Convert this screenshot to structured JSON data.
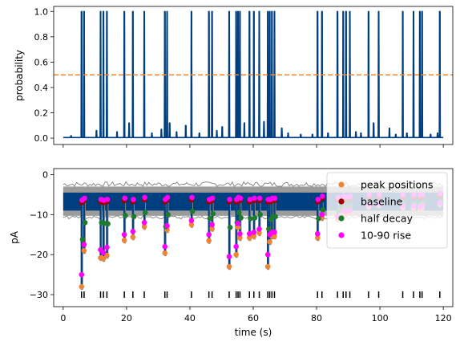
{
  "figure": {
    "top_ylabel": "probability",
    "bottom_ylabel": "pA",
    "xlabel": "time (s)"
  },
  "chart_data": [
    {
      "type": "line",
      "ylabel": "probability",
      "xlim": [
        -3,
        123
      ],
      "ylim": [
        -0.05,
        1.04
      ],
      "x_ticks": [
        0,
        20,
        40,
        60,
        80,
        100,
        120
      ],
      "y_ticks": [
        0.0,
        0.2,
        0.4,
        0.6,
        0.8,
        1.0
      ],
      "y_tick_labels": [
        "0.0",
        "0.2",
        "0.4",
        "0.6",
        "0.8",
        "1.0"
      ],
      "x_tick_labels_visible": false,
      "threshold": {
        "y": 0.5,
        "color": "#ee8533",
        "style": "dashed"
      },
      "series": [
        {
          "color": "#003f7f",
          "baseline": 0.005,
          "spikes": [
            [
              5.8,
              1.0
            ],
            [
              6.6,
              1.0
            ],
            [
              11.8,
              1.0
            ],
            [
              12.7,
              1.0
            ],
            [
              13.8,
              1.0
            ],
            [
              19.3,
              1.0
            ],
            [
              22.0,
              1.0
            ],
            [
              25.6,
              1.0
            ],
            [
              32.1,
              1.0
            ],
            [
              32.8,
              1.0
            ],
            [
              40.5,
              1.0
            ],
            [
              46.0,
              1.0
            ],
            [
              47.0,
              1.0
            ],
            [
              52.4,
              1.0
            ],
            [
              54.6,
              1.0
            ],
            [
              55.2,
              1.0
            ],
            [
              55.8,
              1.0
            ],
            [
              58.8,
              1.0
            ],
            [
              60.2,
              1.0
            ],
            [
              61.9,
              1.0
            ],
            [
              64.6,
              1.0
            ],
            [
              65.2,
              1.0
            ],
            [
              65.9,
              1.0
            ],
            [
              66.7,
              1.0
            ],
            [
              80.3,
              1.0
            ],
            [
              81.7,
              1.0
            ],
            [
              86.6,
              1.0
            ],
            [
              88.4,
              1.0
            ],
            [
              89.3,
              1.0
            ],
            [
              90.5,
              1.0
            ],
            [
              96.4,
              1.0
            ],
            [
              99.6,
              1.0
            ],
            [
              107.2,
              1.0
            ],
            [
              110.6,
              1.0
            ],
            [
              112.6,
              1.0
            ],
            [
              113.3,
              1.0
            ],
            [
              118.9,
              1.0
            ],
            [
              2.5,
              0.02
            ],
            [
              10.5,
              0.06
            ],
            [
              17.0,
              0.05
            ],
            [
              20.8,
              0.12
            ],
            [
              28.0,
              0.04
            ],
            [
              31.0,
              0.07
            ],
            [
              33.6,
              0.12
            ],
            [
              35.8,
              0.05
            ],
            [
              38.7,
              0.1
            ],
            [
              43.0,
              0.04
            ],
            [
              48.5,
              0.06
            ],
            [
              50.2,
              0.09
            ],
            [
              57.2,
              0.12
            ],
            [
              63.4,
              0.13
            ],
            [
              69.0,
              0.08
            ],
            [
              71.0,
              0.04
            ],
            [
              75.0,
              0.03
            ],
            [
              78.7,
              0.03
            ],
            [
              83.6,
              0.04
            ],
            [
              92.4,
              0.05
            ],
            [
              94.0,
              0.04
            ],
            [
              98.0,
              0.12
            ],
            [
              103.0,
              0.08
            ],
            [
              105.0,
              0.03
            ],
            [
              108.5,
              0.04
            ],
            [
              116.0,
              0.03
            ],
            [
              118.2,
              0.04
            ]
          ]
        }
      ]
    },
    {
      "type": "scatter",
      "xlabel": "time (s)",
      "ylabel": "pA",
      "xlim": [
        -3,
        123
      ],
      "ylim": [
        -33,
        1.5
      ],
      "x_ticks": [
        0,
        20,
        40,
        60,
        80,
        100,
        120
      ],
      "x_tick_labels": [
        "0",
        "20",
        "40",
        "60",
        "80",
        "100",
        "120"
      ],
      "y_ticks": [
        0,
        -10,
        -20,
        -30
      ],
      "y_tick_labels": [
        "0",
        "−10",
        "−20",
        "−30"
      ],
      "trace": {
        "raw_color": "#8a8a8a",
        "filtered_color": "#003f7f",
        "band_top": -4.5,
        "band_bottom": -9.0,
        "raw_top": -3.0,
        "raw_bottom": -10.3
      },
      "event_rug": {
        "y": -30.0,
        "color": "#000000"
      },
      "legend": {
        "location": "upper right",
        "entries": [
          "peak positions",
          "baseline",
          "half decay",
          "10-90 rise"
        ]
      },
      "series": [
        {
          "name": "peak positions",
          "color": "#ee8533"
        },
        {
          "name": "baseline",
          "color": "#a00000"
        },
        {
          "name": "half decay",
          "color": "#1e7a2f"
        },
        {
          "name": "10-90 rise",
          "color": "#ff00ff"
        }
      ],
      "events": [
        {
          "t": 5.8,
          "peak": -28.0,
          "half": -16.2,
          "rise": [
            -25.0,
            -7.0
          ]
        },
        {
          "t": 6.6,
          "peak": -19.0,
          "half": -12.0,
          "rise": [
            -17.5,
            -6.5
          ]
        },
        {
          "t": 11.8,
          "peak": -20.8,
          "half": -12.0,
          "rise": [
            -18.8,
            -6.8
          ]
        },
        {
          "t": 12.7,
          "peak": -21.0,
          "half": -12.2,
          "rise": [
            -19.5,
            -7.0
          ]
        },
        {
          "t": 13.8,
          "peak": -20.2,
          "half": -12.3,
          "rise": [
            -18.2,
            -6.8
          ]
        },
        {
          "t": 19.3,
          "peak": -16.4,
          "half": -10.2,
          "rise": [
            -15.0,
            -6.5
          ]
        },
        {
          "t": 22.0,
          "peak": -15.6,
          "half": -10.5,
          "rise": [
            -14.2,
            -6.8
          ]
        },
        {
          "t": 25.6,
          "peak": -13.0,
          "half": -9.5,
          "rise": [
            -12.0,
            -6.3
          ]
        },
        {
          "t": 32.1,
          "peak": -19.6,
          "half": -13.0,
          "rise": [
            -18.0,
            -6.8
          ]
        },
        {
          "t": 32.8,
          "peak": -13.8,
          "half": -10.0,
          "rise": [
            -12.8,
            -6.3
          ]
        },
        {
          "t": 40.5,
          "peak": -12.5,
          "half": -9.2,
          "rise": [
            -11.5,
            -6.3
          ]
        },
        {
          "t": 46.0,
          "peak": -16.5,
          "half": -11.0,
          "rise": [
            -15.0,
            -6.8
          ]
        },
        {
          "t": 47.0,
          "peak": -13.5,
          "half": -9.8,
          "rise": [
            -12.5,
            -6.5
          ]
        },
        {
          "t": 52.4,
          "peak": -23.0,
          "half": -13.2,
          "rise": [
            -20.5,
            -6.8
          ]
        },
        {
          "t": 54.6,
          "peak": -20.0,
          "half": -12.0,
          "rise": [
            -18.0,
            -6.8
          ]
        },
        {
          "t": 55.2,
          "peak": -13.2,
          "half": -9.5,
          "rise": [
            -12.2,
            -6.3
          ]
        },
        {
          "t": 55.8,
          "peak": -15.8,
          "half": -10.8,
          "rise": [
            -14.8,
            -6.5
          ]
        },
        {
          "t": 58.8,
          "peak": -15.8,
          "half": -11.0,
          "rise": [
            -14.8,
            -6.8
          ]
        },
        {
          "t": 60.2,
          "peak": -15.4,
          "half": -10.8,
          "rise": [
            -14.4,
            -6.5
          ]
        },
        {
          "t": 61.9,
          "peak": -14.6,
          "half": -10.0,
          "rise": [
            -13.6,
            -6.5
          ]
        },
        {
          "t": 64.6,
          "peak": -23.0,
          "half": -13.6,
          "rise": [
            -20.0,
            -6.8
          ]
        },
        {
          "t": 65.2,
          "peak": -16.8,
          "half": -11.2,
          "rise": [
            -15.0,
            -6.8
          ]
        },
        {
          "t": 65.9,
          "peak": -15.4,
          "half": -10.5,
          "rise": [
            -14.4,
            -6.5
          ]
        },
        {
          "t": 66.7,
          "peak": -15.4,
          "half": -10.5,
          "rise": [
            -14.4,
            -6.5
          ]
        },
        {
          "t": 80.3,
          "peak": -15.8,
          "half": -11.0,
          "rise": [
            -14.8,
            -6.8
          ]
        },
        {
          "t": 81.7,
          "peak": -10.8,
          "half": -8.8,
          "rise": [
            -10.0,
            -6.0
          ]
        },
        {
          "t": 86.6,
          "peak": -11.2,
          "half": -9.0,
          "rise": [
            -10.5,
            -6.3
          ]
        },
        {
          "t": 88.4,
          "peak": -9.6,
          "half": -8.2,
          "rise": [
            -9.0,
            -6.0
          ]
        },
        {
          "t": 89.3,
          "peak": -9.8,
          "half": -8.3,
          "rise": [
            -9.2,
            -6.2
          ]
        },
        {
          "t": 90.5,
          "peak": -9.4,
          "half": -8.0,
          "rise": [
            -8.9,
            -6.0
          ]
        },
        {
          "t": 96.4,
          "peak": -8.0,
          "half": -7.2,
          "rise": [
            -7.6,
            -5.6
          ]
        },
        {
          "t": 99.6,
          "peak": -7.6,
          "half": -7.0,
          "rise": [
            -7.3,
            -5.5
          ]
        },
        {
          "t": 107.2,
          "peak": -8.2,
          "half": -7.2,
          "rise": [
            -7.8,
            -5.6
          ]
        },
        {
          "t": 110.6,
          "peak": -8.4,
          "half": -7.4,
          "rise": [
            -7.9,
            -5.6
          ]
        },
        {
          "t": 112.6,
          "peak": -8.6,
          "half": -7.5,
          "rise": [
            -8.1,
            -5.7
          ]
        },
        {
          "t": 113.3,
          "peak": -8.2,
          "half": -7.2,
          "rise": [
            -7.8,
            -5.6
          ]
        },
        {
          "t": 118.9,
          "peak": -7.4,
          "half": -6.8,
          "rise": [
            -7.1,
            -5.3
          ]
        }
      ]
    }
  ]
}
